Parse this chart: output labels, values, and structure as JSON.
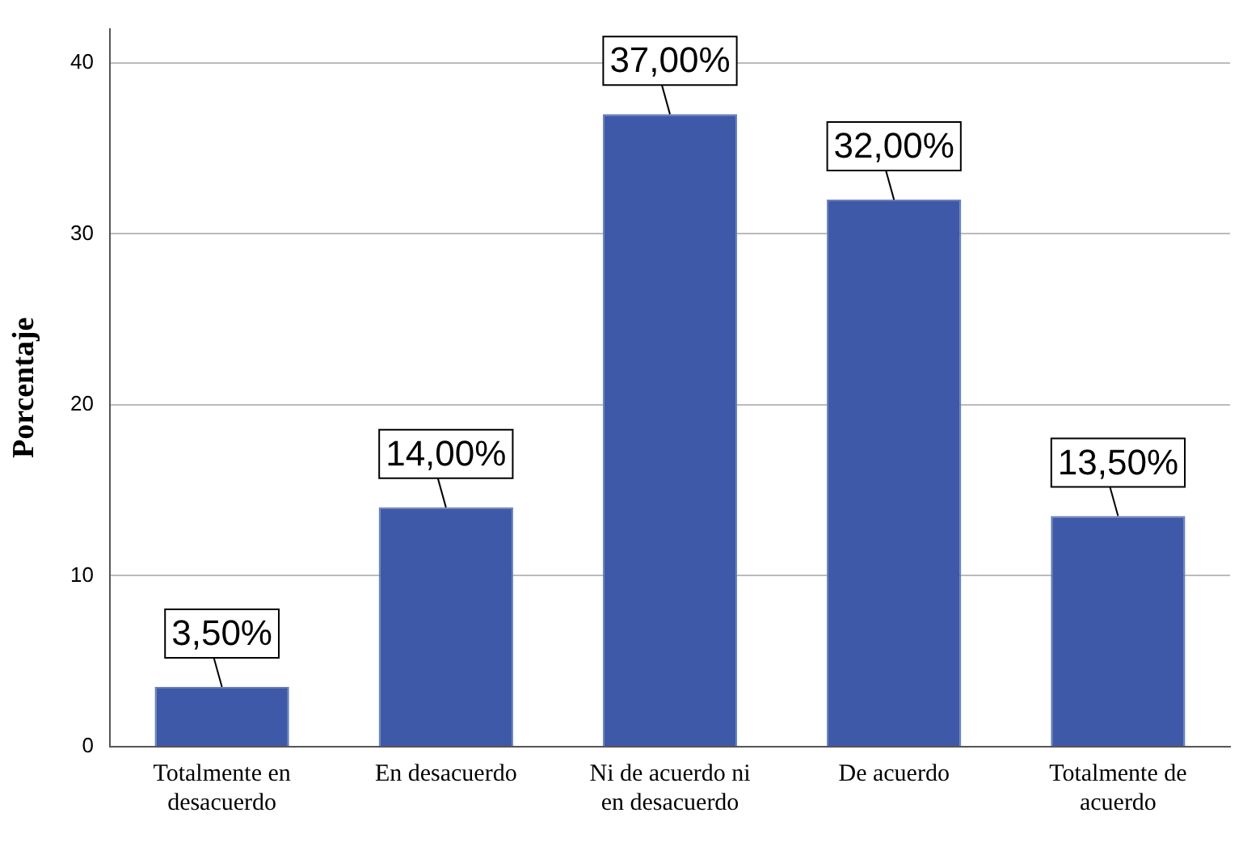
{
  "chart_data": {
    "type": "bar",
    "ylabel": "Porcentaje",
    "categories": [
      "Totalmente en desacuerdo",
      "En desacuerdo",
      "Ni de acuerdo ni en desacuerdo",
      "De acuerdo",
      "Totalmente de acuerdo"
    ],
    "values": [
      3.5,
      14,
      37,
      32,
      13.5
    ],
    "value_labels": [
      "3,50%",
      "14,00%",
      "37,00%",
      "32,00%",
      "13,50%"
    ],
    "color": "#3e59a8",
    "ylim": [
      0,
      42
    ],
    "yticks": [
      0,
      10,
      20,
      30,
      40
    ],
    "grid": "y"
  }
}
